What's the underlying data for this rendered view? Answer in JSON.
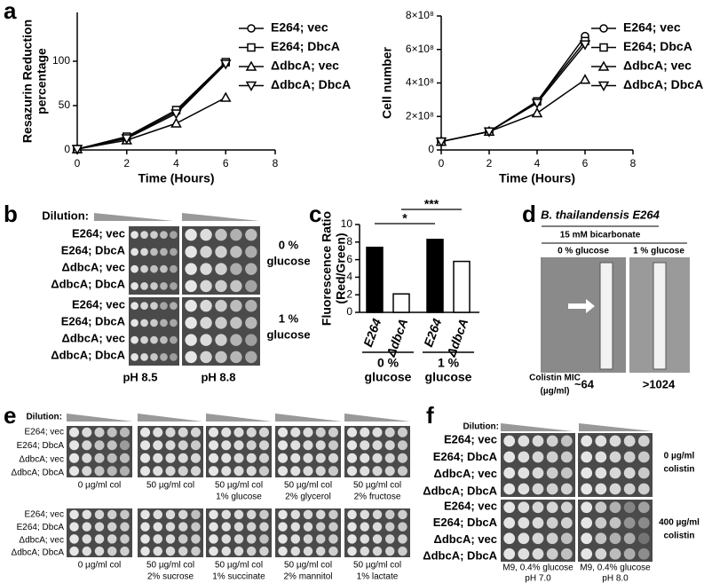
{
  "chart_data": [
    {
      "type": "line",
      "ylabel": [
        "Resazurin Reduction",
        "percentage"
      ],
      "xlabel": "Time (Hours)",
      "x": [
        0,
        2,
        4,
        6
      ],
      "xlim": [
        0,
        8
      ],
      "xticks": [
        0,
        2,
        4,
        6,
        8
      ],
      "ylim": [
        0,
        155
      ],
      "yticks": [
        0,
        50,
        100
      ],
      "series": [
        {
          "name": "E264; vec",
          "color": "#000000",
          "marker": "circle",
          "values": [
            1,
            14,
            43,
            98
          ]
        },
        {
          "name": "E264; DbcA",
          "color": "#000000",
          "marker": "square",
          "values": [
            1,
            15,
            45,
            99
          ]
        },
        {
          "name": "ΔdbcA; vec",
          "color": "#000000",
          "marker": "triangle-up",
          "values": [
            1,
            11,
            30,
            59
          ]
        },
        {
          "name": "ΔdbcA; DbcA",
          "color": "#000000",
          "marker": "triangle-down",
          "values": [
            1,
            13,
            41,
            97
          ]
        }
      ]
    },
    {
      "type": "line",
      "ylabel": [
        "Cell number"
      ],
      "xlabel": "Time (Hours)",
      "x": [
        0,
        2,
        4,
        6
      ],
      "xlim": [
        0,
        8
      ],
      "xticks": [
        0,
        2,
        4,
        6,
        8
      ],
      "ylim": [
        0,
        800000000
      ],
      "yticks": [
        0,
        {
          "value": 200000000,
          "label": "2×10⁸"
        },
        {
          "value": 400000000,
          "label": "4×10⁸"
        },
        {
          "value": 600000000,
          "label": "6×10⁸"
        },
        {
          "value": 800000000,
          "label": "8×10⁸"
        }
      ],
      "series": [
        {
          "name": "E264; vec",
          "color": "#000000",
          "marker": "circle",
          "values": [
            50000000,
            110000000,
            290000000,
            680000000
          ]
        },
        {
          "name": "E264; DbcA",
          "color": "#000000",
          "marker": "square",
          "values": [
            50000000,
            110000000,
            290000000,
            650000000
          ]
        },
        {
          "name": "ΔdbcA; vec",
          "color": "#000000",
          "marker": "triangle-up",
          "values": [
            50000000,
            110000000,
            220000000,
            420000000
          ]
        },
        {
          "name": "ΔdbcA; DbcA",
          "color": "#000000",
          "marker": "triangle-down",
          "values": [
            50000000,
            110000000,
            280000000,
            630000000
          ]
        }
      ]
    },
    {
      "type": "bar",
      "ylabel": [
        "Fluorescence Ratio",
        "(Red/Green)"
      ],
      "ylim": [
        0,
        10
      ],
      "yticks": [
        0,
        2,
        4,
        6,
        8,
        10
      ],
      "categories": [
        "E264",
        "ΔdbcA",
        "E264",
        "ΔdbcA"
      ],
      "values": [
        7.4,
        2.1,
        8.3,
        5.8
      ],
      "colors": [
        "#000000",
        "#ffffff",
        "#000000",
        "#ffffff"
      ],
      "groups": [
        [
          "0 %",
          "glucose"
        ],
        [
          "1 %",
          "glucose"
        ]
      ],
      "significance": [
        "*",
        "***"
      ]
    }
  ],
  "panel_letters": [
    "a",
    "b",
    "c",
    "d",
    "e",
    "f"
  ],
  "strains": [
    "E264; vec",
    "E264; DbcA",
    "ΔdbcA; vec",
    "ΔdbcA; DbcA"
  ],
  "panel_b": {
    "dilution": "Dilution:",
    "conditions": [
      [
        "0 %",
        "glucose"
      ],
      [
        "1 %",
        "glucose"
      ]
    ],
    "ph": [
      "pH 8.5",
      "pH 8.8"
    ]
  },
  "panel_d": {
    "title": "B. thailandensis E264",
    "subtitle": "15 mM bicarbonate",
    "columns": [
      "0 % glucose",
      "1 % glucose"
    ],
    "mic_label": [
      "Colistin MIC",
      "(µg/ml)"
    ],
    "mic_values": [
      "~64",
      ">1024"
    ]
  },
  "panel_e": {
    "dilution": "Dilution:",
    "captions": [
      [
        [
          "0 µg/ml col"
        ],
        [
          "50 µg/ml col"
        ],
        [
          "50 µg/ml col",
          "1% glucose"
        ],
        [
          "50 µg/ml col",
          "2% glycerol"
        ],
        [
          "50 µg/ml col",
          "2% fructose"
        ]
      ],
      [
        [
          "0 µg/ml col"
        ],
        [
          "50 µg/ml col",
          "2% sucrose"
        ],
        [
          "50 µg/ml col",
          "1% succinate"
        ],
        [
          "50 µg/ml col",
          "2% mannitol"
        ],
        [
          "50 µg/ml col",
          "1% lactate"
        ]
      ]
    ]
  },
  "panel_f": {
    "dilution": "Dilution:",
    "conditions": [
      [
        "0 µg/ml",
        "colistin"
      ],
      [
        "400 µg/ml",
        "colistin"
      ]
    ],
    "captions": [
      [
        "M9, 0.4% glucose",
        "pH 7.0"
      ],
      [
        "M9, 0.4% glucose",
        "pH 8.0"
      ]
    ]
  }
}
